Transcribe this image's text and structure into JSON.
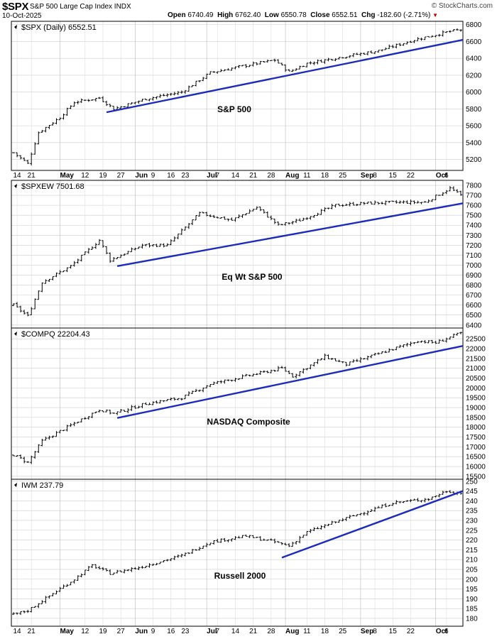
{
  "header": {
    "symbol": "$SPX",
    "name": "S&P 500 Large Cap Index",
    "exchange": "INDX",
    "date": "10-Oct-2025",
    "brand": "© StockCharts.com",
    "open_label": "Open",
    "open": "6740.49",
    "high_label": "High",
    "high": "6762.40",
    "low_label": "Low",
    "low": "6550.78",
    "close_label": "Close",
    "close": "6552.51",
    "chg_label": "Chg",
    "chg": "-182.60 (-2.71%)"
  },
  "colors": {
    "bars": "#000000",
    "trendline": "#1c2bb8",
    "grid": "#cccccc"
  },
  "chart_data": [
    {
      "type": "line",
      "title": "$SPX (Daily) 6552.51",
      "annotation": "S&P 500",
      "yticks": [
        5200,
        5400,
        5600,
        5800,
        6000,
        6200,
        6400,
        6600,
        6800
      ],
      "ylim": [
        5070,
        6840
      ],
      "x_dates": [
        "2025-04-11",
        "2025-10-10"
      ],
      "start": 5280,
      "waypoints": [
        [
          0,
          5280
        ],
        [
          4,
          5150
        ],
        [
          7,
          5520
        ],
        [
          13,
          5700
        ],
        [
          17,
          5880
        ],
        [
          24,
          5930
        ],
        [
          28,
          5800
        ],
        [
          37,
          5920
        ],
        [
          47,
          6000
        ],
        [
          55,
          6230
        ],
        [
          63,
          6300
        ],
        [
          73,
          6380
        ],
        [
          77,
          6240
        ],
        [
          82,
          6340
        ],
        [
          92,
          6420
        ],
        [
          102,
          6490
        ],
        [
          112,
          6620
        ],
        [
          122,
          6720
        ],
        [
          125,
          6740
        ],
        [
          126,
          6552
        ]
      ],
      "trendline": [
        [
          "2025-05-20",
          5760
        ],
        [
          "2025-10-10",
          6620
        ]
      ]
    },
    {
      "type": "line",
      "title": "$SPXEW 7501.68",
      "annotation": "Eq Wt S&P 500",
      "yticks": [
        6400,
        6500,
        6600,
        6700,
        6800,
        6900,
        7000,
        7100,
        7200,
        7300,
        7400,
        7500,
        7600,
        7700,
        7800
      ],
      "ylim": [
        6370,
        7850
      ],
      "x_dates": [
        "2025-04-11",
        "2025-10-10"
      ],
      "start": 6600,
      "waypoints": [
        [
          0,
          6600
        ],
        [
          4,
          6490
        ],
        [
          8,
          6830
        ],
        [
          16,
          6990
        ],
        [
          24,
          7250
        ],
        [
          27,
          7050
        ],
        [
          36,
          7200
        ],
        [
          43,
          7200
        ],
        [
          52,
          7520
        ],
        [
          61,
          7450
        ],
        [
          68,
          7580
        ],
        [
          74,
          7400
        ],
        [
          80,
          7450
        ],
        [
          90,
          7600
        ],
        [
          98,
          7620
        ],
        [
          108,
          7630
        ],
        [
          115,
          7630
        ],
        [
          122,
          7770
        ],
        [
          125,
          7700
        ],
        [
          126,
          7502
        ]
      ],
      "trendline": [
        [
          "2025-05-23",
          6990
        ],
        [
          "2025-10-10",
          7620
        ]
      ]
    },
    {
      "type": "line",
      "title": "$COMPQ 22204.43",
      "annotation": "NASDAQ Composite",
      "yticks": [
        15500,
        16000,
        16500,
        17000,
        17500,
        18000,
        18500,
        19000,
        19500,
        20000,
        20500,
        21000,
        21500,
        22000,
        22500
      ],
      "ylim": [
        15350,
        23050
      ],
      "x_dates": [
        "2025-04-11",
        "2025-10-10"
      ],
      "start": 16600,
      "waypoints": [
        [
          0,
          16600
        ],
        [
          4,
          16200
        ],
        [
          8,
          17300
        ],
        [
          16,
          18100
        ],
        [
          24,
          18900
        ],
        [
          28,
          18700
        ],
        [
          37,
          19200
        ],
        [
          47,
          19500
        ],
        [
          55,
          20200
        ],
        [
          65,
          20600
        ],
        [
          75,
          21000
        ],
        [
          78,
          20600
        ],
        [
          87,
          21600
        ],
        [
          93,
          21200
        ],
        [
          103,
          21800
        ],
        [
          113,
          22400
        ],
        [
          118,
          22300
        ],
        [
          125,
          22800
        ],
        [
          126,
          22204
        ]
      ],
      "trendline": [
        [
          "2025-05-23",
          18470
        ],
        [
          "2025-10-10",
          22140
        ]
      ]
    },
    {
      "type": "line",
      "title": "IWM 237.79",
      "annotation": "Russell 2000",
      "yticks": [
        180,
        185,
        190,
        195,
        200,
        205,
        210,
        215,
        220,
        225,
        230,
        235,
        240,
        245,
        250
      ],
      "ylim": [
        176,
        251
      ],
      "x_dates": [
        "2025-04-11",
        "2025-10-10"
      ],
      "start": 182,
      "waypoints": [
        [
          0,
          182
        ],
        [
          4,
          184
        ],
        [
          8,
          189
        ],
        [
          17,
          200
        ],
        [
          22,
          207
        ],
        [
          27,
          203
        ],
        [
          35,
          206
        ],
        [
          47,
          212
        ],
        [
          55,
          219
        ],
        [
          65,
          222
        ],
        [
          73,
          219
        ],
        [
          77,
          217
        ],
        [
          82,
          224
        ],
        [
          88,
          228
        ],
        [
          96,
          233
        ],
        [
          106,
          239
        ],
        [
          116,
          241
        ],
        [
          121,
          245
        ],
        [
          125,
          244
        ],
        [
          126,
          237.79
        ]
      ],
      "trendline": [
        [
          "2025-07-31",
          211
        ],
        [
          "2025-10-10",
          245
        ]
      ]
    }
  ],
  "x_axis": {
    "labels": [
      {
        "date": "2025-04-14",
        "text": "14",
        "major": false
      },
      {
        "date": "2025-04-21",
        "text": "21",
        "major": false
      },
      {
        "date": "2025-05-01",
        "text": "May",
        "major": true
      },
      {
        "date": "2025-05-12",
        "text": "12",
        "major": false
      },
      {
        "date": "2025-05-19",
        "text": "19",
        "major": false
      },
      {
        "date": "2025-05-27",
        "text": "27",
        "major": false
      },
      {
        "date": "2025-06-02",
        "text": "Jun",
        "major": true
      },
      {
        "date": "2025-06-09",
        "text": "9",
        "major": false
      },
      {
        "date": "2025-06-16",
        "text": "16",
        "major": false
      },
      {
        "date": "2025-06-23",
        "text": "23",
        "major": false
      },
      {
        "date": "2025-07-01",
        "text": "Jul",
        "major": true
      },
      {
        "date": "2025-07-07",
        "text": "7",
        "major": false
      },
      {
        "date": "2025-07-14",
        "text": "14",
        "major": false
      },
      {
        "date": "2025-07-21",
        "text": "21",
        "major": false
      },
      {
        "date": "2025-07-28",
        "text": "28",
        "major": false
      },
      {
        "date": "2025-08-01",
        "text": "Aug",
        "major": true
      },
      {
        "date": "2025-08-11",
        "text": "11",
        "major": false
      },
      {
        "date": "2025-08-18",
        "text": "18",
        "major": false
      },
      {
        "date": "2025-08-25",
        "text": "25",
        "major": false
      },
      {
        "date": "2025-09-02",
        "text": "Sep",
        "major": true
      },
      {
        "date": "2025-09-08",
        "text": "8",
        "major": false
      },
      {
        "date": "2025-09-15",
        "text": "15",
        "major": false
      },
      {
        "date": "2025-09-22",
        "text": "22",
        "major": false
      },
      {
        "date": "2025-10-01",
        "text": "Oct",
        "major": true
      },
      {
        "date": "2025-10-06",
        "text": "6",
        "major": false
      }
    ]
  }
}
